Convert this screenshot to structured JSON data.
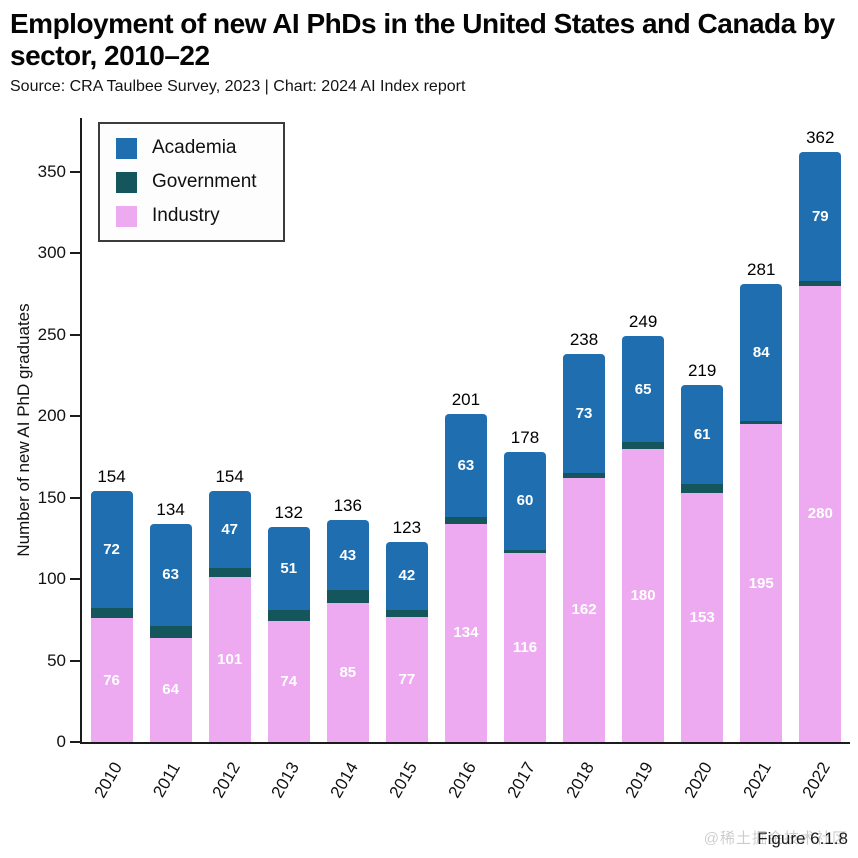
{
  "header": {
    "title": "Employment of new AI PhDs in the United States and Canada by sector, 2010–22",
    "subtitle": "Source: CRA Taulbee Survey, 2023 | Chart: 2024 AI Index report"
  },
  "chart_data": {
    "type": "bar",
    "stacked": true,
    "title": "Employment of new AI PhDs in the United States and Canada by sector, 2010–22",
    "xlabel": "",
    "ylabel": "Number of new AI PhD graduates",
    "categories": [
      "2010",
      "2011",
      "2012",
      "2013",
      "2014",
      "2015",
      "2016",
      "2017",
      "2018",
      "2019",
      "2020",
      "2021",
      "2022"
    ],
    "series": [
      {
        "name": "Academia",
        "color": "#1f6eb0",
        "labeled": true,
        "values": [
          72,
          63,
          47,
          51,
          43,
          42,
          63,
          60,
          73,
          65,
          61,
          84,
          79
        ]
      },
      {
        "name": "Government",
        "color": "#15565c",
        "labeled": false,
        "values": [
          6,
          7,
          6,
          7,
          8,
          4,
          4,
          2,
          3,
          4,
          5,
          2,
          3
        ]
      },
      {
        "name": "Industry",
        "color": "#edaaf1",
        "labeled": true,
        "values": [
          76,
          64,
          101,
          74,
          85,
          77,
          134,
          116,
          162,
          180,
          153,
          195,
          280
        ]
      }
    ],
    "totals": [
      154,
      134,
      154,
      132,
      136,
      123,
      201,
      178,
      238,
      249,
      219,
      281,
      362
    ],
    "yticks": [
      0,
      50,
      100,
      150,
      200,
      250,
      300,
      350
    ],
    "ylim": [
      0,
      382
    ],
    "grid": false,
    "legend_position": "top-left"
  },
  "footer": {
    "figure_label": "Figure 6.1.8",
    "watermark": "@稀土掘金技术社区"
  }
}
